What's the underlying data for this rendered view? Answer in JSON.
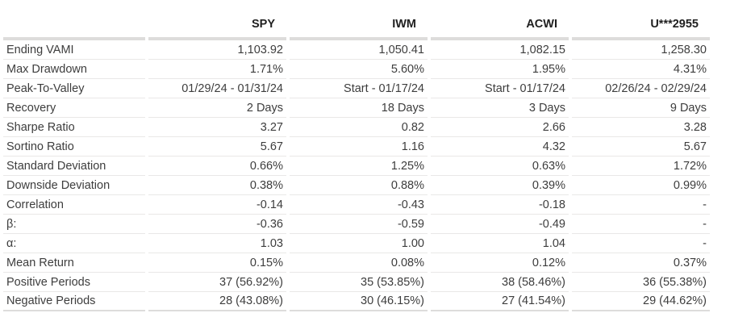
{
  "table": {
    "columns": [
      "SPY",
      "IWM",
      "ACWI",
      "U***2955"
    ],
    "rows": [
      {
        "label": "Ending VAMI",
        "values": [
          "1,103.92",
          "1,050.41",
          "1,082.15",
          "1,258.30"
        ]
      },
      {
        "label": "Max Drawdown",
        "values": [
          "1.71%",
          "5.60%",
          "1.95%",
          "4.31%"
        ]
      },
      {
        "label": "Peak-To-Valley",
        "values": [
          "01/29/24 - 01/31/24",
          "Start - 01/17/24",
          "Start - 01/17/24",
          "02/26/24 - 02/29/24"
        ]
      },
      {
        "label": "Recovery",
        "values": [
          "2 Days",
          "18 Days",
          "3 Days",
          "9 Days"
        ]
      },
      {
        "label": "Sharpe Ratio",
        "values": [
          "3.27",
          "0.82",
          "2.66",
          "3.28"
        ]
      },
      {
        "label": "Sortino Ratio",
        "values": [
          "5.67",
          "1.16",
          "4.32",
          "5.67"
        ]
      },
      {
        "label": "Standard Deviation",
        "values": [
          "0.66%",
          "1.25%",
          "0.63%",
          "1.72%"
        ]
      },
      {
        "label": "Downside Deviation",
        "values": [
          "0.38%",
          "0.88%",
          "0.39%",
          "0.99%"
        ]
      },
      {
        "label": "Correlation",
        "values": [
          "-0.14",
          "-0.43",
          "-0.18",
          "-"
        ]
      },
      {
        "label": "β:",
        "values": [
          "-0.36",
          "-0.59",
          "-0.49",
          "-"
        ]
      },
      {
        "label": "α:",
        "values": [
          "1.03",
          "1.00",
          "1.04",
          "-"
        ]
      },
      {
        "label": "Mean Return",
        "values": [
          "0.15%",
          "0.08%",
          "0.12%",
          "0.37%"
        ]
      },
      {
        "label": "Positive Periods",
        "values": [
          "37 (56.92%)",
          "35 (53.85%)",
          "38 (58.46%)",
          "36 (55.38%)"
        ]
      },
      {
        "label": "Negative Periods",
        "values": [
          "28 (43.08%)",
          "30 (46.15%)",
          "27 (41.54%)",
          "29 (44.62%)"
        ]
      }
    ]
  },
  "colors": {
    "header_text": "#1f1f1f",
    "body_text": "#3d3d3d",
    "thick_divider": "#dddcdb",
    "row_divider": "#e9e8e7",
    "background": "#ffffff"
  }
}
